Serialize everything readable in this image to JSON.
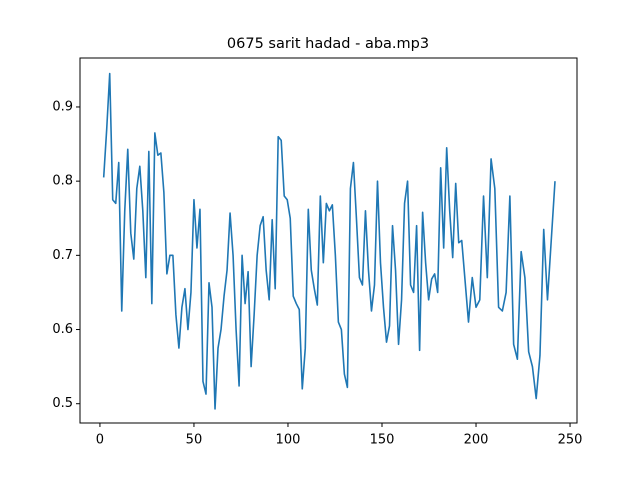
{
  "chart_data": {
    "type": "line",
    "title": "0675 sarit hadad - aba.mp3",
    "x": [
      2,
      3.6,
      5.2,
      6.8,
      8.4,
      10,
      11.6,
      13.2,
      14.8,
      16.4,
      18,
      19.6,
      21.2,
      22.8,
      24.4,
      26,
      27.6,
      29.2,
      30.8,
      32.4,
      34,
      35.6,
      37.2,
      38.8,
      40.4,
      42,
      43.6,
      45.2,
      46.8,
      48.4,
      50,
      51.6,
      53.2,
      54.8,
      56.4,
      58,
      59.6,
      61.2,
      62.8,
      64.4,
      66,
      67.6,
      69.2,
      70.8,
      72.4,
      74,
      75.6,
      77.2,
      78.8,
      80.4,
      82,
      83.6,
      85.2,
      86.8,
      88.4,
      90,
      91.6,
      93.2,
      94.8,
      96.4,
      98,
      99.6,
      101.2,
      102.8,
      104.4,
      106,
      107.6,
      109.2,
      110.8,
      112.4,
      114,
      115.6,
      117.2,
      118.8,
      120.4,
      122,
      123.6,
      125.2,
      126.8,
      128.4,
      130,
      131.6,
      133.2,
      134.8,
      136.4,
      138,
      139.6,
      141.2,
      142.8,
      144.4,
      146,
      147.6,
      149.2,
      150.8,
      152.4,
      154,
      155.6,
      157.2,
      158.8,
      160.4,
      162,
      163.6,
      165.2,
      166.8,
      168.4,
      170,
      171.6,
      173.2,
      174.8,
      176.4,
      178,
      179.6,
      181.2,
      182.8,
      184.4,
      186,
      187.6,
      189.2,
      190.8,
      192.4,
      196,
      198,
      200,
      202,
      204,
      206,
      208,
      210,
      212,
      214,
      216,
      218,
      220,
      222,
      224,
      226,
      228,
      230,
      232,
      234,
      236,
      238,
      240,
      242
    ],
    "series": [
      {
        "color": "#1f77b4",
        "values": [
          0.805,
          0.87,
          0.945,
          0.775,
          0.77,
          0.825,
          0.625,
          0.76,
          0.843,
          0.73,
          0.695,
          0.79,
          0.82,
          0.76,
          0.67,
          0.84,
          0.635,
          0.865,
          0.835,
          0.838,
          0.785,
          0.675,
          0.7,
          0.7,
          0.62,
          0.575,
          0.63,
          0.655,
          0.6,
          0.65,
          0.775,
          0.71,
          0.762,
          0.53,
          0.513,
          0.663,
          0.63,
          0.493,
          0.575,
          0.6,
          0.645,
          0.68,
          0.757,
          0.7,
          0.6,
          0.524,
          0.7,
          0.635,
          0.678,
          0.55,
          0.62,
          0.7,
          0.74,
          0.752,
          0.68,
          0.64,
          0.748,
          0.655,
          0.86,
          0.855,
          0.78,
          0.775,
          0.75,
          0.645,
          0.635,
          0.627,
          0.52,
          0.575,
          0.762,
          0.68,
          0.655,
          0.633,
          0.78,
          0.69,
          0.77,
          0.76,
          0.768,
          0.7,
          0.61,
          0.6,
          0.54,
          0.522,
          0.79,
          0.825,
          0.75,
          0.67,
          0.66,
          0.76,
          0.68,
          0.625,
          0.66,
          0.8,
          0.69,
          0.63,
          0.583,
          0.605,
          0.74,
          0.68,
          0.58,
          0.64,
          0.77,
          0.8,
          0.66,
          0.65,
          0.74,
          0.572,
          0.758,
          0.69,
          0.64,
          0.668,
          0.675,
          0.65,
          0.818,
          0.71,
          0.845,
          0.76,
          0.697,
          0.797,
          0.717,
          0.72,
          0.61,
          0.67,
          0.63,
          0.64,
          0.78,
          0.67,
          0.83,
          0.79,
          0.63,
          0.625,
          0.65,
          0.78,
          0.58,
          0.56,
          0.705,
          0.67,
          0.57,
          0.55,
          0.507,
          0.565,
          0.735,
          0.64,
          0.72,
          0.8
        ]
      }
    ],
    "xlim": [
      -10.6,
      253.7
    ],
    "xticks": [
      0,
      50,
      100,
      150,
      200,
      250
    ],
    "ylim": [
      0.474,
      0.966
    ],
    "yticks": [
      0.5,
      0.6,
      0.7,
      0.8,
      0.9
    ]
  }
}
